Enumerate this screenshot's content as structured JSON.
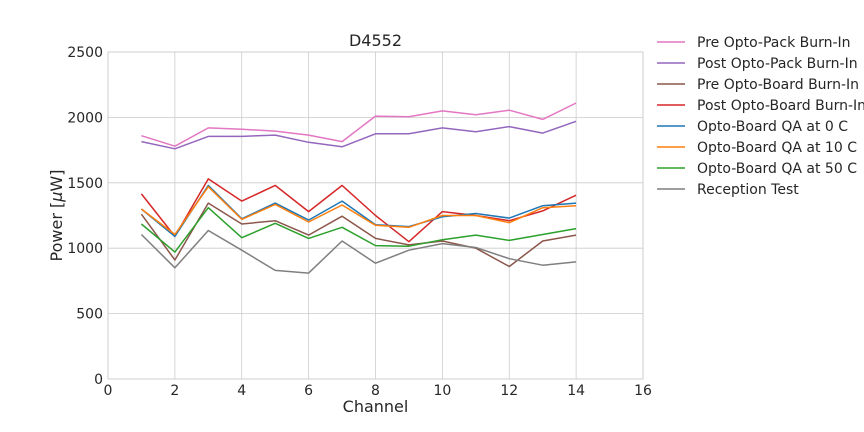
{
  "chart_data": {
    "type": "line",
    "title": "D4552",
    "xlabel": "Channel",
    "ylabel": "Power [μW]",
    "ylabel_parts": {
      "main": "Power [",
      "unit": "μ",
      "unit_rest": "W]"
    },
    "xlim": [
      0,
      16
    ],
    "ylim": [
      0,
      2500
    ],
    "xticks": [
      0,
      2,
      4,
      6,
      8,
      10,
      12,
      14,
      16
    ],
    "yticks": [
      0,
      500,
      1000,
      1500,
      2000,
      2500
    ],
    "grid": true,
    "legend_placement": "outside right",
    "x": [
      1,
      2,
      3,
      4,
      5,
      6,
      7,
      8,
      9,
      10,
      11,
      12,
      13,
      14
    ],
    "series": [
      {
        "name": "Pre Opto-Pack Burn-In",
        "color": "#e377c2",
        "values": [
          1860,
          1780,
          1920,
          1910,
          1895,
          1865,
          1815,
          2010,
          2005,
          2050,
          2020,
          2055,
          1985,
          2110
        ]
      },
      {
        "name": "Post Opto-Pack Burn-In",
        "color": "#9467bd",
        "values": [
          1815,
          1760,
          1855,
          1855,
          1865,
          1810,
          1775,
          1875,
          1875,
          1920,
          1890,
          1930,
          1880,
          1970
        ]
      },
      {
        "name": "Pre Opto-Board Burn-In",
        "color": "#8c564b",
        "values": [
          1260,
          910,
          1345,
          1185,
          1210,
          1100,
          1245,
          1075,
          1025,
          1055,
          1000,
          860,
          1055,
          1100
        ]
      },
      {
        "name": "Post Opto-Board Burn-In",
        "color": "#d62728",
        "values": [
          1415,
          1090,
          1530,
          1360,
          1480,
          1280,
          1480,
          1250,
          1050,
          1280,
          1250,
          1210,
          1285,
          1405
        ]
      },
      {
        "name": "Opto-Board QA at 0 C",
        "color": "#1f77b4",
        "values": [
          1300,
          1090,
          1480,
          1225,
          1345,
          1215,
          1360,
          1180,
          1165,
          1240,
          1265,
          1230,
          1325,
          1345
        ]
      },
      {
        "name": "Opto-Board QA at 10 C",
        "color": "#ff7f0e",
        "values": [
          1300,
          1105,
          1470,
          1220,
          1335,
          1200,
          1330,
          1175,
          1160,
          1250,
          1250,
          1195,
          1310,
          1325
        ]
      },
      {
        "name": "Opto-Board QA at 50 C",
        "color": "#2ca02c",
        "values": [
          1185,
          970,
          1310,
          1080,
          1190,
          1075,
          1160,
          1020,
          1015,
          1065,
          1100,
          1060,
          1105,
          1150
        ]
      },
      {
        "name": "Reception Test",
        "color": "#7f7f7f",
        "values": [
          1105,
          850,
          1135,
          985,
          830,
          810,
          1055,
          885,
          985,
          1035,
          1005,
          920,
          870,
          895
        ]
      }
    ]
  }
}
